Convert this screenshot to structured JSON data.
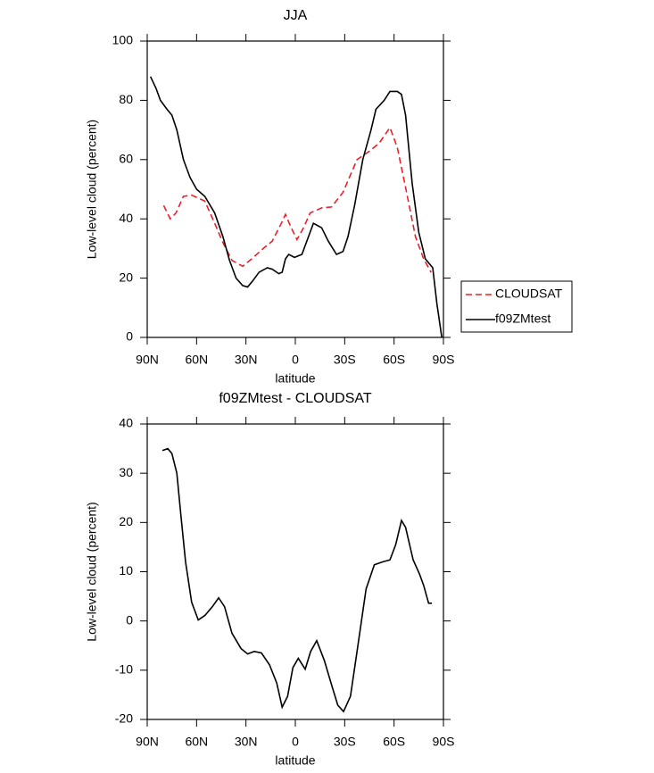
{
  "chart_data": [
    {
      "type": "line",
      "title": "JJA",
      "x_label": "latitude",
      "y_label": "Low-level cloud (percent)",
      "xlim": [
        90,
        -90
      ],
      "xticks": [
        {
          "value": 90,
          "label": "90N"
        },
        {
          "value": 60,
          "label": "60N"
        },
        {
          "value": 30,
          "label": "30N"
        },
        0,
        {
          "value": -30,
          "label": "30S"
        },
        {
          "value": -60,
          "label": "60S"
        },
        {
          "value": -90,
          "label": "90S"
        }
      ],
      "ylim": [
        0,
        100
      ],
      "yticks": [
        0,
        20,
        40,
        60,
        80,
        100
      ],
      "legend": "right",
      "series": [
        {
          "name": "CLOUDSAT",
          "color": "#e8202a",
          "line_style": "dashed",
          "x": [
            80,
            76,
            72.5,
            68,
            63,
            55,
            49,
            44,
            38.5,
            32,
            26.5,
            19.5,
            14,
            8.5,
            6,
            2.5,
            -1,
            -5,
            -9,
            -16,
            -22,
            -29,
            -37.5,
            -45.5,
            -51,
            -57.5,
            -62,
            -67,
            -73,
            -78,
            -82.5
          ],
          "values": [
            44.5,
            40,
            42,
            47.6,
            48,
            46,
            38.5,
            32,
            26,
            24,
            26.5,
            30,
            32.5,
            38.5,
            41.5,
            37,
            33,
            37,
            42,
            43.7,
            44,
            49,
            60,
            63,
            65.6,
            70.8,
            64,
            50.6,
            34,
            26.5,
            22
          ]
        },
        {
          "name": "f09ZMtest",
          "color": "#000000",
          "line_style": "solid",
          "x": [
            88,
            84.6,
            82,
            78,
            75,
            72,
            68,
            64,
            60,
            55,
            49,
            44,
            40,
            36,
            32,
            29,
            26,
            22,
            17,
            14,
            10,
            8,
            6,
            4,
            0.5,
            -4,
            -8,
            -11,
            -16,
            -20,
            -25,
            -29,
            -32,
            -36,
            -41,
            -46,
            -49,
            -54,
            -57.5,
            -62,
            -64.5,
            -67,
            -71,
            -75,
            -79,
            -83.5,
            -86,
            -89
          ],
          "values": [
            88,
            84,
            80,
            77,
            75,
            70,
            60,
            54,
            50,
            47.6,
            42,
            34,
            26,
            20,
            17.5,
            17,
            19,
            22,
            23.5,
            23,
            21.5,
            22,
            26.5,
            28,
            27,
            28,
            34,
            38.5,
            37,
            32.5,
            28,
            29,
            34,
            44.5,
            60,
            70,
            77,
            80,
            83,
            83,
            82,
            75,
            52,
            35.5,
            26.5,
            23.5,
            11.5,
            0
          ]
        }
      ]
    },
    {
      "type": "line",
      "title": "f09ZMtest - CLOUDSAT",
      "x_label": "latitude",
      "y_label": "Low-level cloud (percent)",
      "xlim": [
        90,
        -90
      ],
      "xticks": [
        {
          "value": 90,
          "label": "90N"
        },
        {
          "value": 60,
          "label": "60N"
        },
        {
          "value": 30,
          "label": "30N"
        },
        0,
        {
          "value": -30,
          "label": "30S"
        },
        {
          "value": -60,
          "label": "60S"
        },
        {
          "value": -90,
          "label": "90S"
        }
      ],
      "ylim": [
        -20,
        40
      ],
      "yticks": [
        -20,
        -10,
        0,
        10,
        20,
        30,
        40
      ],
      "series": [
        {
          "color": "#000000",
          "line_style": "solid",
          "x": [
            80.8,
            77.5,
            75,
            72,
            69.4,
            66.7,
            63,
            59,
            55,
            50.4,
            46.6,
            43,
            38.5,
            33,
            29,
            25,
            20.6,
            15.7,
            11.3,
            8,
            4.7,
            1.5,
            -1.8,
            -6,
            -9.3,
            -13,
            -17.6,
            -22.5,
            -25.8,
            -29.3,
            -33.5,
            -37.5,
            -43,
            -48,
            -53,
            -57.5,
            -61,
            -64.5,
            -67,
            -71.6,
            -75.5,
            -78,
            -81,
            -83
          ],
          "values": [
            34.6,
            35,
            34,
            30,
            21,
            12,
            3.8,
            0.2,
            1.1,
            2.9,
            4.7,
            2.9,
            -2.5,
            -5.6,
            -6.7,
            -6.2,
            -6.5,
            -8.9,
            -12.6,
            -17.5,
            -15.3,
            -9.5,
            -7.6,
            -9.8,
            -6.2,
            -4,
            -8,
            -13.5,
            -17.1,
            -18.4,
            -15.3,
            -6.2,
            6.5,
            11.4,
            12,
            12.4,
            15.5,
            20.4,
            19,
            12.4,
            9.5,
            7.2,
            3.6,
            3.6
          ]
        }
      ]
    }
  ]
}
